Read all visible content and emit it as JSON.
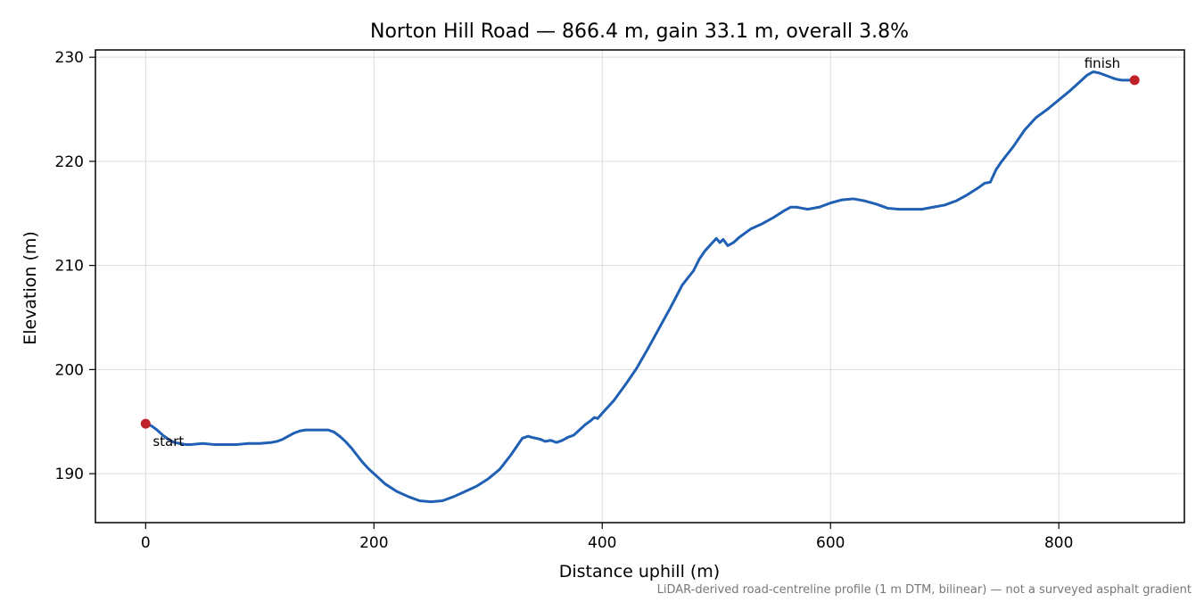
{
  "chart_data": {
    "type": "line",
    "title": "Norton Hill Road — 866.4 m, gain 33.1 m, overall 3.8%",
    "xlabel": "Distance uphill (m)",
    "ylabel": "Elevation (m)",
    "xlim": [
      -44,
      910
    ],
    "ylim": [
      185.3,
      230.7
    ],
    "xticks": [
      0,
      200,
      400,
      600,
      800
    ],
    "yticks": [
      190,
      200,
      210,
      220,
      230
    ],
    "grid": true,
    "line_color": "#1f5fb4",
    "marker_color": "#c0202a",
    "series": [
      {
        "x": [
          0,
          5,
          10,
          15,
          20,
          25,
          30,
          35,
          40,
          50,
          60,
          70,
          80,
          90,
          100,
          110,
          115,
          120,
          125,
          130,
          135,
          140,
          145,
          150,
          155,
          160,
          165,
          170,
          175,
          180,
          185,
          190,
          195,
          200,
          210,
          220,
          230,
          240,
          250,
          260,
          270,
          280,
          290,
          300,
          310,
          315,
          320,
          325,
          330,
          335,
          338,
          342,
          346,
          350,
          355,
          360,
          365,
          370,
          375,
          380,
          385,
          390,
          393,
          396,
          400,
          410,
          420,
          430,
          440,
          450,
          460,
          470,
          480,
          485,
          490,
          495,
          500,
          503,
          506,
          510,
          515,
          520,
          530,
          540,
          550,
          560,
          565,
          570,
          575,
          580,
          590,
          600,
          610,
          620,
          630,
          640,
          650,
          660,
          670,
          680,
          690,
          700,
          710,
          720,
          730,
          735,
          740,
          745,
          750,
          760,
          770,
          780,
          790,
          800,
          810,
          820,
          825,
          830,
          835,
          840,
          845,
          850,
          855,
          860,
          866.4
        ],
        "y": [
          194.8,
          194.6,
          194.2,
          193.7,
          193.3,
          193.0,
          192.9,
          192.8,
          192.8,
          192.9,
          192.8,
          192.8,
          192.8,
          192.9,
          192.9,
          193.0,
          193.1,
          193.3,
          193.6,
          193.9,
          194.1,
          194.2,
          194.2,
          194.2,
          194.2,
          194.2,
          194.0,
          193.6,
          193.1,
          192.5,
          191.8,
          191.1,
          190.5,
          190.0,
          189.0,
          188.3,
          187.8,
          187.4,
          187.3,
          187.4,
          187.8,
          188.3,
          188.8,
          189.5,
          190.4,
          191.1,
          191.8,
          192.6,
          193.4,
          193.6,
          193.5,
          193.4,
          193.3,
          193.1,
          193.2,
          193.0,
          193.2,
          193.5,
          193.7,
          194.2,
          194.7,
          195.1,
          195.4,
          195.3,
          195.8,
          197.0,
          198.5,
          200.1,
          202.0,
          204.0,
          206.0,
          208.1,
          209.5,
          210.6,
          211.4,
          212.0,
          212.6,
          212.2,
          212.5,
          211.9,
          212.2,
          212.7,
          213.5,
          214.0,
          214.6,
          215.3,
          215.6,
          215.6,
          215.5,
          215.4,
          215.6,
          216.0,
          216.3,
          216.4,
          216.2,
          215.9,
          215.5,
          215.4,
          215.4,
          215.4,
          215.6,
          215.8,
          216.2,
          216.8,
          217.5,
          217.9,
          218.0,
          219.2,
          220.0,
          221.4,
          223.0,
          224.2,
          225.0,
          225.9,
          226.8,
          227.8,
          228.3,
          228.6,
          228.5,
          228.3,
          228.1,
          227.9,
          227.8,
          227.8,
          227.8
        ]
      }
    ],
    "markers": [
      {
        "label": "start",
        "x": 0,
        "y": 194.8
      },
      {
        "label": "finish",
        "x": 866.4,
        "y": 227.8
      }
    ],
    "footnote": "LiDAR-derived road-centreline profile (1 m DTM, bilinear) — not a surveyed asphalt gradient"
  }
}
